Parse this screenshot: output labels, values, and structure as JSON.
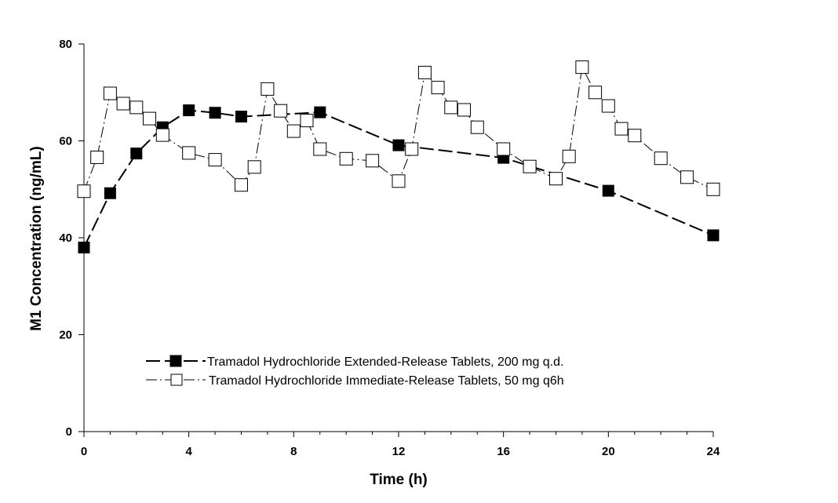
{
  "chart_data": {
    "type": "line",
    "title": "",
    "xlabel": "Time (h)",
    "ylabel": "M1 Concentration (ng/mL)",
    "xlim": [
      0,
      24
    ],
    "ylim": [
      0,
      80
    ],
    "x_ticks": [
      0,
      4,
      8,
      12,
      16,
      20,
      24
    ],
    "x_minor_step": 1,
    "y_ticks": [
      0,
      20,
      40,
      60,
      80
    ],
    "grid": false,
    "legend_position": "lower-center",
    "series": [
      {
        "name": "Tramadol Hydrochloride Extended-Release Tablets, 200 mg q.d.",
        "marker": "filled-square",
        "line_style": "long-dash",
        "color": "#000000",
        "x": [
          0,
          1,
          2,
          3,
          4,
          5,
          6,
          9,
          12,
          16,
          20,
          24
        ],
        "y": [
          38,
          49.2,
          57.4,
          62.8,
          66.3,
          65.8,
          65,
          65.9,
          59.1,
          56.5,
          49.7,
          40.5
        ]
      },
      {
        "name": "Tramadol Hydrochloride Immediate-Release Tablets, 50 mg q6h",
        "marker": "open-square",
        "line_style": "dash-dot",
        "color": "#000000",
        "x": [
          0,
          0.5,
          1,
          1.5,
          2,
          2.5,
          3,
          4,
          5,
          6,
          6.5,
          7,
          7.5,
          8,
          8.5,
          9,
          10,
          11,
          12,
          12.5,
          13,
          13.5,
          14,
          14.5,
          15,
          16,
          17,
          18,
          18.5,
          19,
          19.5,
          20,
          20.5,
          21,
          22,
          23,
          24
        ],
        "y": [
          49.6,
          56.6,
          69.8,
          67.7,
          66.9,
          64.6,
          61.2,
          57.5,
          56.1,
          50.9,
          54.6,
          70.7,
          66.2,
          62,
          64.2,
          58.3,
          56.3,
          55.9,
          51.7,
          58.3,
          74.1,
          71,
          66.9,
          66.4,
          62.8,
          58.3,
          54.7,
          52.2,
          56.8,
          75.2,
          70,
          67.2,
          62.5,
          61.1,
          56.4,
          52.5,
          50
        ]
      }
    ]
  }
}
